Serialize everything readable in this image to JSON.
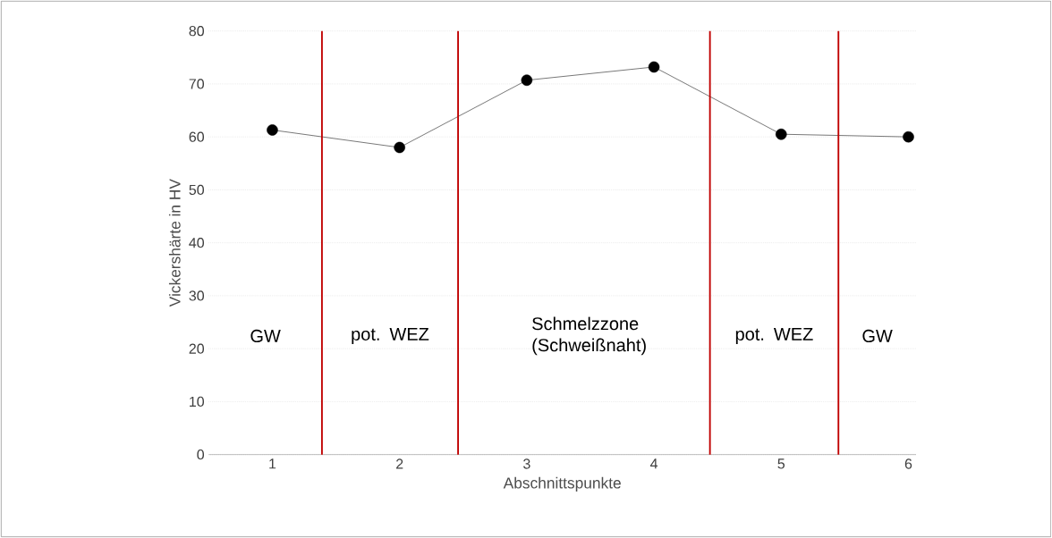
{
  "chart_data": {
    "type": "line",
    "xlabel": "Abschnittspunkte",
    "ylabel": "Vickershärte in HV",
    "x": [
      1,
      2,
      3,
      4,
      5,
      6
    ],
    "series": [
      {
        "color": "#000000",
        "values": [
          61.3,
          58.0,
          70.7,
          73.2,
          60.5,
          60.0
        ]
      }
    ],
    "xlim": [
      0.5,
      6.06
    ],
    "xticks": [
      1,
      2,
      3,
      4,
      5,
      6
    ],
    "ylim": [
      0,
      80
    ],
    "yticks": [
      0,
      10,
      20,
      30,
      40,
      50,
      60,
      70,
      80
    ],
    "grid": "y",
    "marker": "circle",
    "line_style": "solid",
    "ref_lines": [
      {
        "axis": "x",
        "value": 1.39,
        "color": "#c00000"
      },
      {
        "axis": "x",
        "value": 2.46,
        "color": "#c00000"
      },
      {
        "axis": "x",
        "value": 4.44,
        "color": "#c00000"
      },
      {
        "axis": "x",
        "value": 5.45,
        "color": "#c00000"
      }
    ],
    "annotations": [
      "GW",
      "pot. WEZ",
      "Schmelzzone (Schweißnaht)",
      "pot. WEZ",
      "GW"
    ]
  }
}
